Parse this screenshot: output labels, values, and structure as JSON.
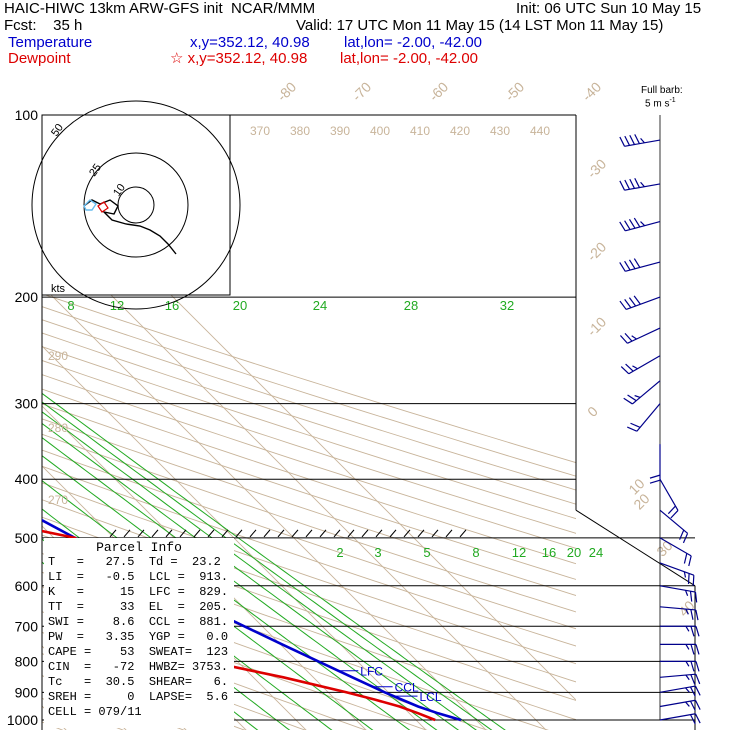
{
  "header": {
    "line1_left": "HAIC-HIWC 13km ARW-GFS init  NCAR/MMM",
    "line1_right": "Init: 06 UTC Sun 10 May 15",
    "line2_left": "Fcst:    35 h",
    "line2_right": "Valid: 17 UTC Mon 11 May 15 (14 LST Mon 11 May 15)",
    "temperature_label": "Temperature",
    "temperature_xy": "x,y=352.12, 40.98",
    "temperature_latlon": "lat,lon= -2.00, -42.00",
    "dewpoint_label": "Dewpoint",
    "dewpoint_xy": "x,y=352.12, 40.98",
    "dewpoint_latlon": "lat,lon= -2.00, -42.00",
    "barb_key_line1": "Full barb:",
    "barb_key_line2": "5 m s",
    "barb_key_sup": "-1",
    "hodo_unit": "kts"
  },
  "colors": {
    "temperature": "#0000cc",
    "dewpoint": "#dd0000",
    "dry_adiabat": "#c8b49a",
    "mixing_ratio": "#22aa22",
    "isobar": "#000000"
  },
  "chart_data": {
    "type": "line",
    "title": "Skew-T log-P sounding",
    "ylabel": "",
    "pressure_levels": [
      100,
      200,
      300,
      400,
      500,
      600,
      700,
      800,
      900,
      1000
    ],
    "series": [
      {
        "name": "Temperature",
        "points": [
          {
            "p": 1000,
            "t": 27.5
          },
          {
            "p": 975,
            "t": 24.8
          },
          {
            "p": 950,
            "t": 22.6
          },
          {
            "p": 925,
            "t": 21.0
          },
          {
            "p": 900,
            "t": 19.4
          },
          {
            "p": 850,
            "t": 16.5
          },
          {
            "p": 800,
            "t": 13.5
          },
          {
            "p": 750,
            "t": 10.3
          },
          {
            "p": 700,
            "t": 7.0
          },
          {
            "p": 650,
            "t": 3.5
          },
          {
            "p": 600,
            "t": 0.0
          },
          {
            "p": 550,
            "t": -3.5
          },
          {
            "p": 500,
            "t": -6.5
          },
          {
            "p": 450,
            "t": -10.5
          },
          {
            "p": 400,
            "t": -15.5
          },
          {
            "p": 350,
            "t": -21.5
          },
          {
            "p": 300,
            "t": -28.5
          },
          {
            "p": 250,
            "t": -37.5
          },
          {
            "p": 200,
            "t": -49.0
          },
          {
            "p": 175,
            "t": -57.0
          },
          {
            "p": 150,
            "t": -65.0
          },
          {
            "p": 125,
            "t": -74.0
          },
          {
            "p": 100,
            "t": -82.0
          }
        ]
      },
      {
        "name": "Dewpoint",
        "points": [
          {
            "p": 1000,
            "t": 23.2
          },
          {
            "p": 975,
            "t": 21.5
          },
          {
            "p": 950,
            "t": 19.5
          },
          {
            "p": 925,
            "t": 16.5
          },
          {
            "p": 900,
            "t": 13.0
          },
          {
            "p": 850,
            "t": 5.0
          },
          {
            "p": 800,
            "t": -5.0
          },
          {
            "p": 750,
            "t": -4.0
          },
          {
            "p": 700,
            "t": -4.0
          },
          {
            "p": 650,
            "t": -5.0
          },
          {
            "p": 600,
            "t": -18.0
          },
          {
            "p": 550,
            "t": -12.0
          },
          {
            "p": 500,
            "t": -6.5
          },
          {
            "p": 450,
            "t": -24.0
          },
          {
            "p": 400,
            "t": -36.0
          },
          {
            "p": 380,
            "t": -56.0
          },
          {
            "p": 350,
            "t": -40.0
          },
          {
            "p": 310,
            "t": -38.0
          },
          {
            "p": 285,
            "t": -32.0
          },
          {
            "p": 270,
            "t": -44.0
          },
          {
            "p": 250,
            "t": -37.0
          },
          {
            "p": 220,
            "t": -30.0
          },
          {
            "p": 200,
            "t": -30.0
          },
          {
            "p": 175,
            "t": -35.0
          },
          {
            "p": 150,
            "t": -42.0
          },
          {
            "p": 125,
            "t": -48.0
          },
          {
            "p": 100,
            "t": -57.0
          }
        ]
      }
    ],
    "isotherm_labels": [
      -80,
      -70,
      -60,
      -50,
      -40,
      -30,
      -20,
      -10,
      0,
      10,
      20,
      30,
      40
    ],
    "theta_labels": [
      370,
      380,
      390,
      400,
      410,
      420,
      430,
      440
    ],
    "theta_low_labels": [
      290,
      280,
      270
    ],
    "mixing_ratio_upper": [
      8,
      12,
      16,
      20,
      24,
      28,
      32
    ],
    "mixing_ratio_lower": [
      2,
      3,
      5,
      8,
      12,
      16,
      20,
      24
    ],
    "levels_marked": [
      {
        "name": "EL",
        "p": 205
      },
      {
        "name": "LFC",
        "p": 829
      },
      {
        "name": "CCL",
        "p": 881
      },
      {
        "name": "LCL",
        "p": 913
      }
    ],
    "hodograph_rings": [
      10,
      25,
      50
    ],
    "wind_profile": [
      {
        "p": 110,
        "spd": 25,
        "dir": 260
      },
      {
        "p": 130,
        "spd": 25,
        "dir": 260
      },
      {
        "p": 150,
        "spd": 25,
        "dir": 255
      },
      {
        "p": 175,
        "spd": 20,
        "dir": 255
      },
      {
        "p": 200,
        "spd": 20,
        "dir": 250
      },
      {
        "p": 225,
        "spd": 15,
        "dir": 245
      },
      {
        "p": 250,
        "spd": 15,
        "dir": 240
      },
      {
        "p": 275,
        "spd": 15,
        "dir": 230
      },
      {
        "p": 300,
        "spd": 10,
        "dir": 220
      },
      {
        "p": 350,
        "spd": 10,
        "dir": 180
      },
      {
        "p": 400,
        "spd": 10,
        "dir": 150
      },
      {
        "p": 450,
        "spd": 10,
        "dir": 130
      },
      {
        "p": 500,
        "spd": 10,
        "dir": 120
      },
      {
        "p": 550,
        "spd": 15,
        "dir": 110
      },
      {
        "p": 600,
        "spd": 15,
        "dir": 100
      },
      {
        "p": 650,
        "spd": 15,
        "dir": 95
      },
      {
        "p": 700,
        "spd": 15,
        "dir": 90
      },
      {
        "p": 750,
        "spd": 15,
        "dir": 90
      },
      {
        "p": 800,
        "spd": 15,
        "dir": 90
      },
      {
        "p": 850,
        "spd": 15,
        "dir": 85
      },
      {
        "p": 900,
        "spd": 15,
        "dir": 80
      },
      {
        "p": 950,
        "spd": 15,
        "dir": 80
      },
      {
        "p": 1000,
        "spd": 10,
        "dir": 80
      }
    ]
  },
  "parcel_info": {
    "title": "Parcel Info",
    "rows": [
      "T   =   27.5  Td =  23.2",
      "LI  =   -0.5  LCL =  913.",
      "K   =     15  LFC =  829.",
      "TT  =     33  EL  =  205.",
      "SWI =    8.6  CCL =  881.",
      "PW  =   3.35  YGP =   0.0",
      "CAPE =    53  SWEAT=  123",
      "CIN  =   -72  HWBZ= 3753.",
      "Tc   =  30.5  SHEAR=   6.",
      "SREH =     0  LAPSE=  5.6",
      "CELL = 079/11"
    ]
  }
}
